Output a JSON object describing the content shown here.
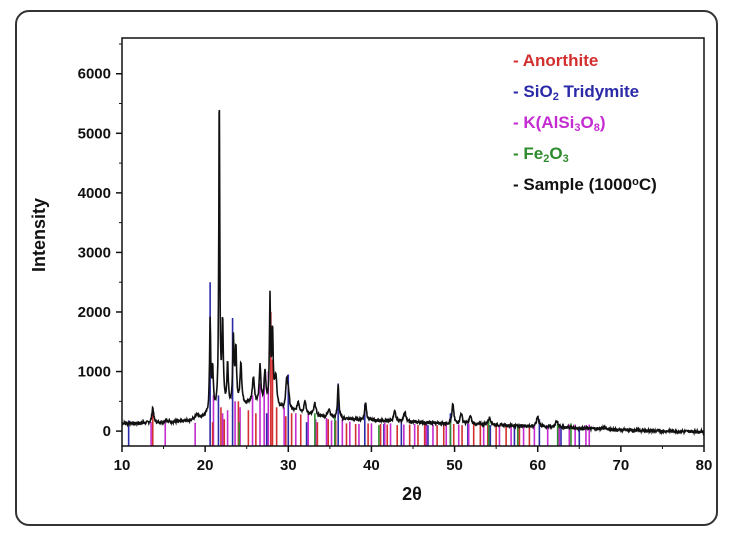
{
  "chart_data": {
    "type": "line",
    "xlabel": "2θ",
    "ylabel": "Intensity",
    "xlim": [
      10,
      80
    ],
    "ylim": [
      -250,
      6600
    ],
    "xticks": [
      10,
      20,
      30,
      40,
      50,
      60,
      70,
      80
    ],
    "yticks": [
      0,
      1000,
      2000,
      3000,
      4000,
      5000,
      6000
    ],
    "grid": false,
    "legend_position": "top-right",
    "legend": [
      {
        "key": "anorthite",
        "dash": "-",
        "parts": [
          {
            "t": "Anorthite"
          }
        ],
        "color": "#d32f2f"
      },
      {
        "key": "tridymite",
        "dash": "-",
        "parts": [
          {
            "t": "SiO"
          },
          {
            "t": "2",
            "sub": true
          },
          {
            "t": " Tridymite"
          }
        ],
        "color": "#2b2ba8"
      },
      {
        "key": "kfeldspar",
        "dash": "-",
        "parts": [
          {
            "t": "K(AlSi"
          },
          {
            "t": "3",
            "sub": true
          },
          {
            "t": "O"
          },
          {
            "t": "8",
            "sub": true
          },
          {
            "t": ")"
          }
        ],
        "color": "#c42bd0"
      },
      {
        "key": "hematite",
        "dash": "-",
        "parts": [
          {
            "t": "Fe"
          },
          {
            "t": "2",
            "sub": true
          },
          {
            "t": "O"
          },
          {
            "t": "3",
            "sub": true
          }
        ],
        "color": "#2e8b2e"
      },
      {
        "key": "sample",
        "dash": "-",
        "parts": [
          {
            "t": "Sample (1000"
          },
          {
            "t": "o",
            "sup": true
          },
          {
            "t": "C)"
          }
        ],
        "color": "#111111"
      }
    ],
    "reference_patterns": [
      {
        "key": "tridymite",
        "color": "#2b2ba8",
        "peaks": [
          [
            10.8,
            180
          ],
          [
            20.6,
            2500
          ],
          [
            21.6,
            600
          ],
          [
            23.3,
            1900
          ],
          [
            27.4,
            300
          ],
          [
            30.0,
            950
          ],
          [
            32.2,
            150
          ],
          [
            36.0,
            800
          ],
          [
            39.2,
            450
          ],
          [
            41.5,
            120
          ],
          [
            43.6,
            180
          ],
          [
            46.8,
            100
          ],
          [
            49.5,
            300
          ],
          [
            51.6,
            120
          ],
          [
            54.3,
            100
          ],
          [
            57.2,
            90
          ],
          [
            60.2,
            200
          ],
          [
            62.8,
            90
          ],
          [
            65.0,
            80
          ]
        ]
      },
      {
        "key": "kfeldspar",
        "color": "#c42bd0",
        "peaks": [
          [
            13.5,
            150
          ],
          [
            15.2,
            180
          ],
          [
            18.8,
            140
          ],
          [
            21.0,
            600
          ],
          [
            22.1,
            300
          ],
          [
            22.7,
            350
          ],
          [
            23.6,
            500
          ],
          [
            24.2,
            400
          ],
          [
            25.7,
            600
          ],
          [
            26.6,
            800
          ],
          [
            27.1,
            900
          ],
          [
            27.6,
            1000
          ],
          [
            29.5,
            400
          ],
          [
            30.9,
            300
          ],
          [
            32.4,
            280
          ],
          [
            33.3,
            200
          ],
          [
            34.6,
            220
          ],
          [
            35.2,
            180
          ],
          [
            36.5,
            200
          ],
          [
            37.4,
            160
          ],
          [
            38.5,
            120
          ],
          [
            40.0,
            130
          ],
          [
            41.6,
            140
          ],
          [
            42.3,
            130
          ],
          [
            43.9,
            110
          ],
          [
            45.2,
            120
          ],
          [
            46.6,
            130
          ],
          [
            47.4,
            110
          ],
          [
            49.0,
            120
          ],
          [
            50.5,
            110
          ],
          [
            51.7,
            130
          ],
          [
            53.5,
            100
          ],
          [
            55.4,
            110
          ],
          [
            56.8,
            100
          ],
          [
            58.3,
            110
          ],
          [
            59.6,
            100
          ],
          [
            61.2,
            100
          ],
          [
            62.6,
            120
          ],
          [
            63.8,
            110
          ],
          [
            64.5,
            110
          ],
          [
            65.8,
            100
          ],
          [
            66.2,
            110
          ]
        ]
      },
      {
        "key": "anorthite",
        "color": "#d32f2f",
        "peaks": [
          [
            13.7,
            300
          ],
          [
            20.9,
            150
          ],
          [
            21.9,
            400
          ],
          [
            22.3,
            200
          ],
          [
            24.0,
            500
          ],
          [
            25.2,
            350
          ],
          [
            26.1,
            300
          ],
          [
            27.9,
            2000
          ],
          [
            28.1,
            1200
          ],
          [
            28.6,
            400
          ],
          [
            29.7,
            250
          ],
          [
            30.4,
            300
          ],
          [
            31.5,
            280
          ],
          [
            33.5,
            150
          ],
          [
            34.8,
            200
          ],
          [
            35.7,
            180
          ],
          [
            37.0,
            130
          ],
          [
            38.1,
            120
          ],
          [
            39.6,
            130
          ],
          [
            41.1,
            120
          ],
          [
            41.9,
            110
          ],
          [
            43.1,
            100
          ],
          [
            44.6,
            110
          ],
          [
            45.6,
            100
          ],
          [
            46.4,
            120
          ],
          [
            47.9,
            100
          ],
          [
            48.7,
            110
          ],
          [
            49.9,
            120
          ],
          [
            50.9,
            100
          ],
          [
            52.3,
            110
          ],
          [
            53.1,
            100
          ],
          [
            54.0,
            110
          ],
          [
            55.0,
            90
          ],
          [
            56.2,
            100
          ],
          [
            57.8,
            90
          ],
          [
            59.0,
            90
          ]
        ]
      },
      {
        "key": "hematite",
        "color": "#2e8b2e",
        "peaks": [
          [
            24.1,
            150
          ],
          [
            33.2,
            300
          ],
          [
            35.6,
            250
          ],
          [
            40.9,
            100
          ],
          [
            49.5,
            150
          ],
          [
            54.1,
            200
          ],
          [
            57.6,
            100
          ],
          [
            62.4,
            130
          ],
          [
            64.0,
            130
          ]
        ]
      }
    ],
    "sample_baseline": [
      [
        10,
        130
      ],
      [
        15,
        140
      ],
      [
        18,
        170
      ],
      [
        20,
        240
      ],
      [
        22,
        360
      ],
      [
        25,
        440
      ],
      [
        28,
        400
      ],
      [
        30,
        330
      ],
      [
        33,
        260
      ],
      [
        36,
        210
      ],
      [
        40,
        180
      ],
      [
        45,
        150
      ],
      [
        50,
        120
      ],
      [
        55,
        100
      ],
      [
        60,
        80
      ],
      [
        65,
        50
      ],
      [
        70,
        20
      ],
      [
        75,
        0
      ],
      [
        80,
        -10
      ]
    ],
    "sample_peaks": [
      [
        13.7,
        260,
        0.12
      ],
      [
        15.3,
        60,
        0.15
      ],
      [
        19.0,
        80,
        0.2
      ],
      [
        20.6,
        1550,
        0.08
      ],
      [
        20.9,
        700,
        0.1
      ],
      [
        21.7,
        5300,
        0.07
      ],
      [
        22.1,
        1400,
        0.1
      ],
      [
        22.7,
        700,
        0.1
      ],
      [
        23.4,
        1100,
        0.1
      ],
      [
        23.7,
        900,
        0.1
      ],
      [
        24.3,
        700,
        0.12
      ],
      [
        25.8,
        450,
        0.15
      ],
      [
        26.6,
        650,
        0.12
      ],
      [
        27.2,
        550,
        0.12
      ],
      [
        27.8,
        1750,
        0.08
      ],
      [
        28.1,
        1200,
        0.1
      ],
      [
        28.5,
        500,
        0.15
      ],
      [
        29.8,
        450,
        0.12
      ],
      [
        30.0,
        300,
        0.15
      ],
      [
        31.2,
        180,
        0.15
      ],
      [
        32.0,
        200,
        0.15
      ],
      [
        33.2,
        200,
        0.15
      ],
      [
        34.9,
        150,
        0.15
      ],
      [
        36.0,
        550,
        0.1
      ],
      [
        39.3,
        300,
        0.12
      ],
      [
        42.8,
        160,
        0.15
      ],
      [
        44.0,
        160,
        0.15
      ],
      [
        49.8,
        340,
        0.12
      ],
      [
        50.8,
        180,
        0.15
      ],
      [
        51.9,
        140,
        0.15
      ],
      [
        54.2,
        120,
        0.2
      ],
      [
        60.0,
        170,
        0.15
      ],
      [
        62.3,
        90,
        0.2
      ],
      [
        67.9,
        30,
        0.3
      ]
    ]
  }
}
